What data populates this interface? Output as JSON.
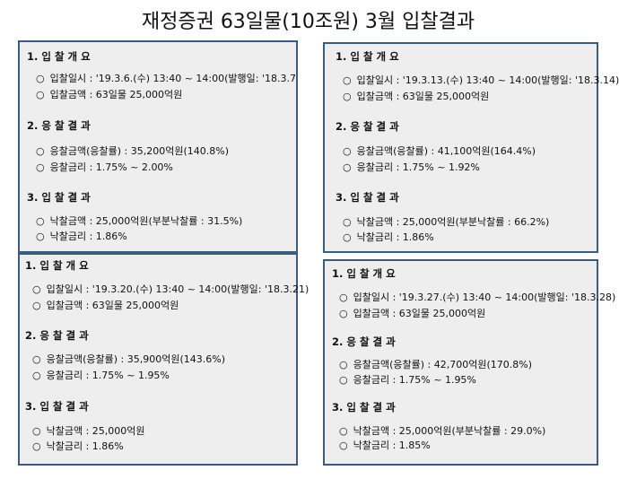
{
  "title": "재정증권 63일물(10조원) 3월  입찰결과",
  "bullet": "○",
  "panels": [
    {
      "sec1_title": "1. 입 찰 개 요",
      "sec1_items": [
        "입찰일시 : '19.3.6.(수) 13:40 ~ 14:00(발행일: '18.3.7",
        "입찰금액 : 63일물 25,000억원"
      ],
      "sec2_title": "2. 응 찰 결 과",
      "sec2_items": [
        "응찰금액(응찰률) : 35,200억원(140.8%)",
        "응찰금리 : 1.75% ~  2.00%"
      ],
      "sec3_title": "3. 입 찰 결 과",
      "sec3_items": [
        "낙찰금액 : 25,000억원(부분낙찰률 : 31.5%)",
        "낙찰금리 : 1.86%"
      ]
    },
    {
      "sec1_title": "1. 입 찰 개 요",
      "sec1_items": [
        "입찰일시 : '19.3.13.(수) 13:40 ~ 14:00(발행일: '18.3.14)",
        "입찰금액 : 63일물 25,000억원"
      ],
      "sec2_title": "2. 응 찰 결 과",
      "sec2_items": [
        "응찰금액(응찰률) : 41,100억원(164.4%)",
        "응찰금리 : 1.75%  ~  1.92%"
      ],
      "sec3_title": "3. 입 찰 결 과",
      "sec3_items": [
        "낙찰금액 : 25,000억원(부분낙찰률 : 66.2%)",
        "낙찰금리 : 1.86%"
      ]
    },
    {
      "sec1_title": "1. 입 찰 개 요",
      "sec1_items": [
        "입찰일시 : '19.3.20.(수) 13:40 ~ 14:00(발행일: '18.3.21)",
        "입찰금액 : 63일물 25,000억원"
      ],
      "sec2_title": "2. 응 찰 결 과",
      "sec2_items": [
        "응찰금액(응찰률) : 35,900억원(143.6%)",
        "응찰금리 : 1.75%  ~  1.95%"
      ],
      "sec3_title": "3. 입 찰 결 과",
      "sec3_items": [
        "낙찰금액 : 25,000억원",
        "낙찰금리 : 1.86%"
      ]
    },
    {
      "sec1_title": "1. 입 찰 개 요",
      "sec1_items": [
        "입찰일시 : '19.3.27.(수) 13:40 ~ 14:00(발행일: '18.3.28)",
        "입찰금액 : 63일물 25,000억원"
      ],
      "sec2_title": "2. 응 찰 결 과",
      "sec2_items": [
        "응찰금액(응찰률) : 42,700억원(170.8%)",
        "응찰금리 : 1.75%  ~  1.95%"
      ],
      "sec3_title": "3. 입 찰 결 과",
      "sec3_items": [
        "낙찰금액 : 25,000억원(부분낙찰률 : 29.0%)",
        "낙찰금리 : 1.85%"
      ]
    }
  ]
}
